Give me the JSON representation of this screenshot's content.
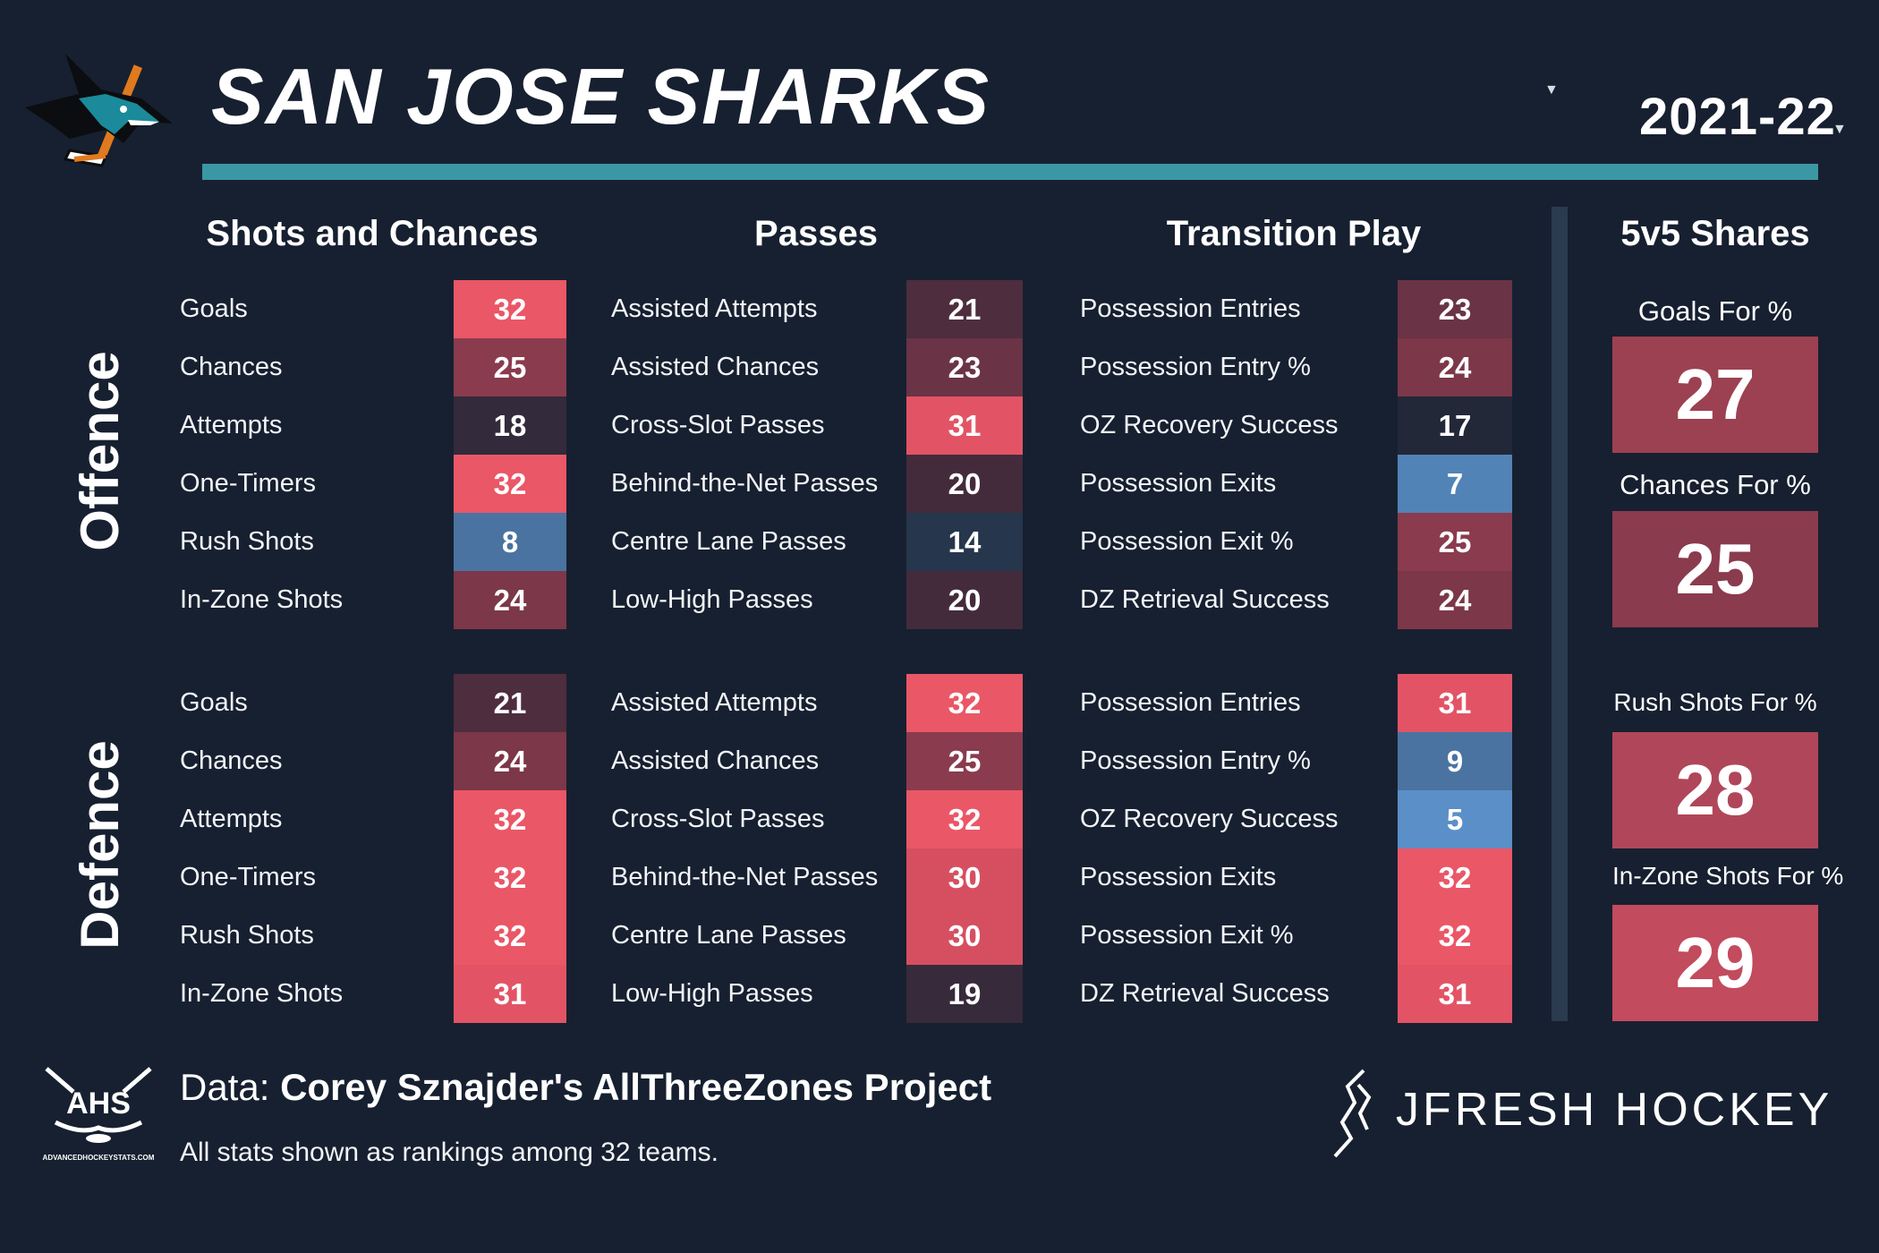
{
  "header": {
    "team_name": "SAN JOSE SHARKS",
    "season": "2021-22"
  },
  "columns": {
    "shots": "Shots and Chances",
    "passes": "Passes",
    "transition": "Transition Play",
    "shares": "5v5 Shares"
  },
  "sides": {
    "offence": "Offence",
    "defence": "Defence"
  },
  "offence": {
    "shots": [
      {
        "label": "Goals",
        "value": "32",
        "color": "#ea5767"
      },
      {
        "label": "Chances",
        "value": "25",
        "color": "#8a3b4e"
      },
      {
        "label": "Attempts",
        "value": "18",
        "color": "#332a3b"
      },
      {
        "label": "One-Timers",
        "value": "32",
        "color": "#ea5767"
      },
      {
        "label": "Rush Shots",
        "value": "8",
        "color": "#4a73a1"
      },
      {
        "label": "In-Zone Shots",
        "value": "24",
        "color": "#7c3749"
      }
    ],
    "passes": [
      {
        "label": "Assisted Attempts",
        "value": "21",
        "color": "#4e2d3e"
      },
      {
        "label": "Assisted Chances",
        "value": "23",
        "color": "#6a3346"
      },
      {
        "label": "Cross-Slot Passes",
        "value": "31",
        "color": "#e25465"
      },
      {
        "label": "Behind-the-Net Passes",
        "value": "20",
        "color": "#432b3c"
      },
      {
        "label": "Centre Lane Passes",
        "value": "14",
        "color": "#26364c"
      },
      {
        "label": "Low-High Passes",
        "value": "20",
        "color": "#432b3c"
      }
    ],
    "transition": [
      {
        "label": "Possession Entries",
        "value": "23",
        "color": "#6a3346"
      },
      {
        "label": "Possession Entry %",
        "value": "24",
        "color": "#7c3749"
      },
      {
        "label": "OZ Recovery Success",
        "value": "17",
        "color": "#222838"
      },
      {
        "label": "Possession Exits",
        "value": "7",
        "color": "#5283b7"
      },
      {
        "label": "Possession Exit %",
        "value": "25",
        "color": "#8a3b4e"
      },
      {
        "label": "DZ Retrieval Success",
        "value": "24",
        "color": "#7c3749"
      }
    ]
  },
  "defence": {
    "shots": [
      {
        "label": "Goals",
        "value": "21",
        "color": "#4e2d3e"
      },
      {
        "label": "Chances",
        "value": "24",
        "color": "#7c3749"
      },
      {
        "label": "Attempts",
        "value": "32",
        "color": "#ea5767"
      },
      {
        "label": "One-Timers",
        "value": "32",
        "color": "#ea5767"
      },
      {
        "label": "Rush Shots",
        "value": "32",
        "color": "#ea5767"
      },
      {
        "label": "In-Zone Shots",
        "value": "31",
        "color": "#e25465"
      }
    ],
    "passes": [
      {
        "label": "Assisted Attempts",
        "value": "32",
        "color": "#ea5767"
      },
      {
        "label": "Assisted Chances",
        "value": "25",
        "color": "#8a3b4e"
      },
      {
        "label": "Cross-Slot Passes",
        "value": "32",
        "color": "#ea5767"
      },
      {
        "label": "Behind-the-Net Passes",
        "value": "30",
        "color": "#d64f61"
      },
      {
        "label": "Centre Lane Passes",
        "value": "30",
        "color": "#d64f61"
      },
      {
        "label": "Low-High Passes",
        "value": "19",
        "color": "#372a3b"
      }
    ],
    "transition": [
      {
        "label": "Possession Entries",
        "value": "31",
        "color": "#e25465"
      },
      {
        "label": "Possession Entry %",
        "value": "9",
        "color": "#4a73a1"
      },
      {
        "label": "OZ Recovery Success",
        "value": "5",
        "color": "#5b8fc8"
      },
      {
        "label": "Possession Exits",
        "value": "32",
        "color": "#ea5767"
      },
      {
        "label": "Possession Exit %",
        "value": "32",
        "color": "#ea5767"
      },
      {
        "label": "DZ Retrieval Success",
        "value": "31",
        "color": "#e25465"
      }
    ]
  },
  "shares": [
    {
      "label": "Goals For %",
      "value": "27",
      "color": "#9c4152"
    },
    {
      "label": "Chances For %",
      "value": "25",
      "color": "#8a3b4e"
    },
    {
      "label": "Rush Shots For %",
      "value": "28",
      "color": "#b0465a"
    },
    {
      "label": "In-Zone Shots For %",
      "value": "29",
      "color": "#c24b5e"
    }
  ],
  "footer": {
    "data_prefix": "Data: ",
    "data_source": "Corey Sznajder's AllThreeZones Project",
    "footnote": "All stats shown as rankings among 32 teams.",
    "ahs_logo_text": "AHS",
    "ahs_url": "ADVANCEDHOCKEYSTATS.COM",
    "brand": "JFRESH HOCKEY"
  },
  "colors": {
    "background": "#172030",
    "accent_teal": "#3c97a4",
    "divider": "#2a3a4f"
  },
  "icons": {
    "team_logo": "shark-logo-icon",
    "ahs_logo": "ahs-logo-icon",
    "jfresh_logo": "jfresh-mark-icon"
  }
}
